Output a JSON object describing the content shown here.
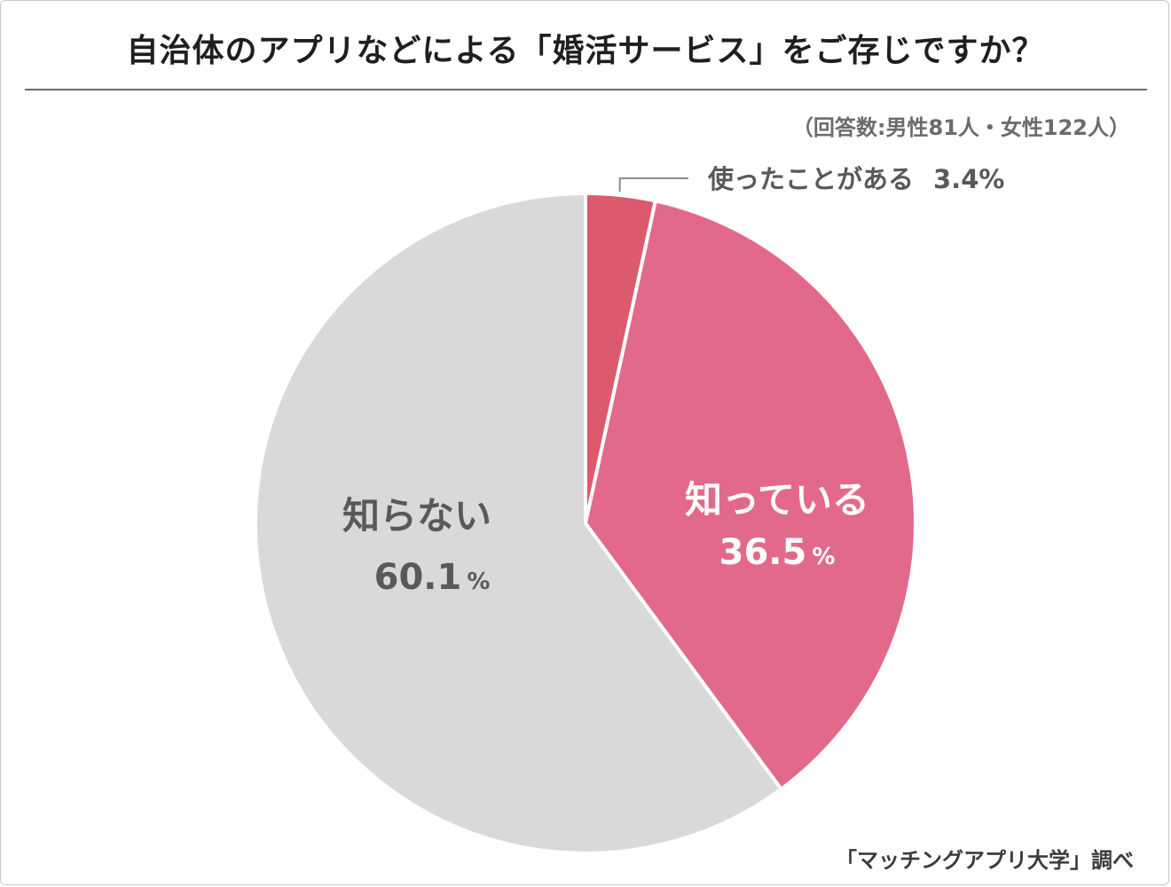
{
  "chart_data": {
    "type": "pie",
    "title": "自治体のアプリなどによる「婚活サービス」をご存じですか？",
    "subtitle": "（回答数:男性81人・女性122人）",
    "source": "「マッチングアプリ大学」調べ",
    "slices": [
      {
        "label": "使ったことがある",
        "value": 3.4,
        "value_text": "3.4%",
        "color": "#dc5a6e",
        "label_placement": "outside-leader"
      },
      {
        "label": "知っている",
        "value": 36.5,
        "value_text": "36.5",
        "unit": "%",
        "color": "#e2698a",
        "label_color": "#ffffff"
      },
      {
        "label": "知らない",
        "value": 60.1,
        "value_text": "60.1",
        "unit": "%",
        "color": "#d9d9d9",
        "label_color": "#595959"
      }
    ],
    "start_angle": "12 o'clock",
    "direction": "clockwise"
  }
}
